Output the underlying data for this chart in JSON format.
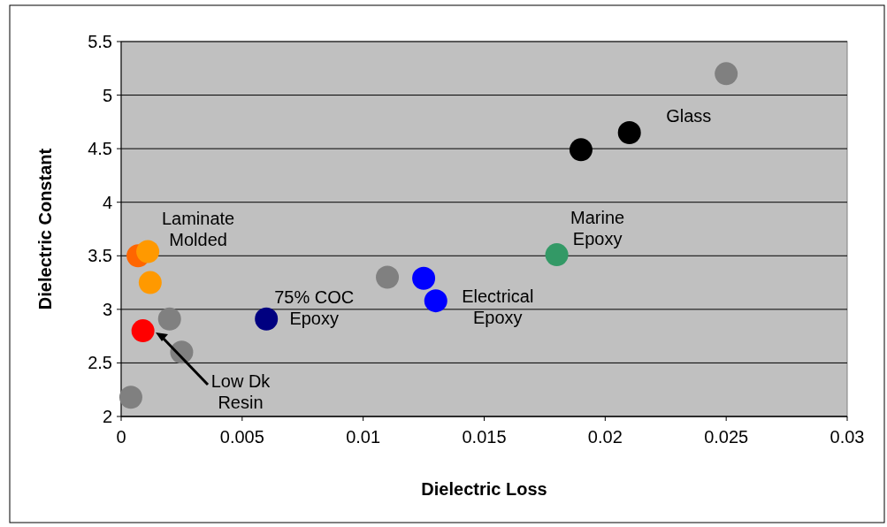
{
  "chart_data": {
    "type": "scatter",
    "xlabel": "Dielectric Loss",
    "ylabel": "Dielectric Constant",
    "xlim": [
      0,
      0.03
    ],
    "xticks": [
      0,
      0.005,
      0.01,
      0.015,
      0.02,
      0.025,
      0.03
    ],
    "ylim": [
      2,
      5.5
    ],
    "yticks": [
      2,
      2.5,
      3,
      3.5,
      4,
      4.5,
      5,
      5.5
    ],
    "grid": "y",
    "marker": "circle",
    "series": [
      {
        "x": [
          0.025,
          0.021,
          0.019,
          0.018,
          0.0125,
          0.013,
          0.011,
          0.006,
          0.002,
          0.0025,
          0.0009,
          0.0007,
          0.0011,
          0.0012,
          0.0004
        ],
        "values": [
          5.2,
          4.65,
          4.49,
          3.51,
          3.29,
          3.08,
          3.3,
          2.91,
          2.91,
          2.6,
          2.8,
          3.5,
          3.54,
          3.25,
          2.18
        ],
        "colors": [
          "#808080",
          "#000000",
          "#000000",
          "#339966",
          "#0000ff",
          "#0000ff",
          "#808080",
          "#000080",
          "#808080",
          "#808080",
          "#ff0000",
          "#ff6600",
          "#ff9900",
          "#ff9900",
          "#808080"
        ]
      }
    ],
    "annotations": [
      {
        "text": "Glass",
        "x": 0.021,
        "y": 4.65
      },
      {
        "text": "Marine\nEpoxy",
        "x": 0.018,
        "y": 3.51
      },
      {
        "text": "Electrical\nEpoxy",
        "x": 0.013,
        "y": 3.08
      },
      {
        "text": "75% COC\nEpoxy",
        "x": 0.006,
        "y": 2.91
      },
      {
        "text": "Laminate\nMolded",
        "x": 0.0011,
        "y": 3.54
      },
      "Low Dk\nResin"
    ]
  }
}
